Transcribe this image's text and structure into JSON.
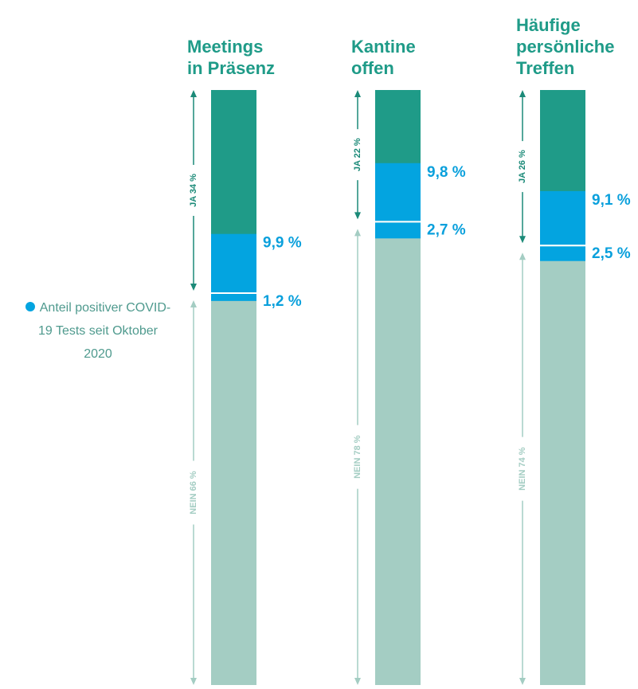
{
  "chart_data": {
    "type": "stacked_bar",
    "categories": [
      "Meetings\nin Präsenz",
      "Kantine\noffen",
      "Häufige\npersönliche\nTreffen"
    ],
    "ylim": [
      0,
      100
    ],
    "series": [
      {
        "name": "JA",
        "color": "#1f9b88",
        "label_color": "#1b8a78",
        "values": [
          34,
          22,
          26
        ],
        "value_labels": [
          "JA 34 %",
          "JA 22 %",
          "JA 26 %"
        ]
      },
      {
        "name": "NEIN",
        "color": "#a4cdc3",
        "label_color": "#a4cdc3",
        "values": [
          66,
          78,
          74
        ],
        "value_labels": [
          "NEIN 66 %",
          "NEIN 78 %",
          "NEIN 74 %"
        ]
      }
    ],
    "positive": {
      "name": "Anteil positiver COVID-19 Tests seit Oktober 2020",
      "color": "#03a4e0",
      "ja_values": [
        9.9,
        9.8,
        9.1
      ],
      "ja_labels": [
        "9,9 %",
        "9,8 %",
        "9,1 %"
      ],
      "nein_values": [
        1.2,
        2.7,
        2.5
      ],
      "nein_labels": [
        "1,2 %",
        "2,7 %",
        "2,5 %"
      ]
    }
  }
}
